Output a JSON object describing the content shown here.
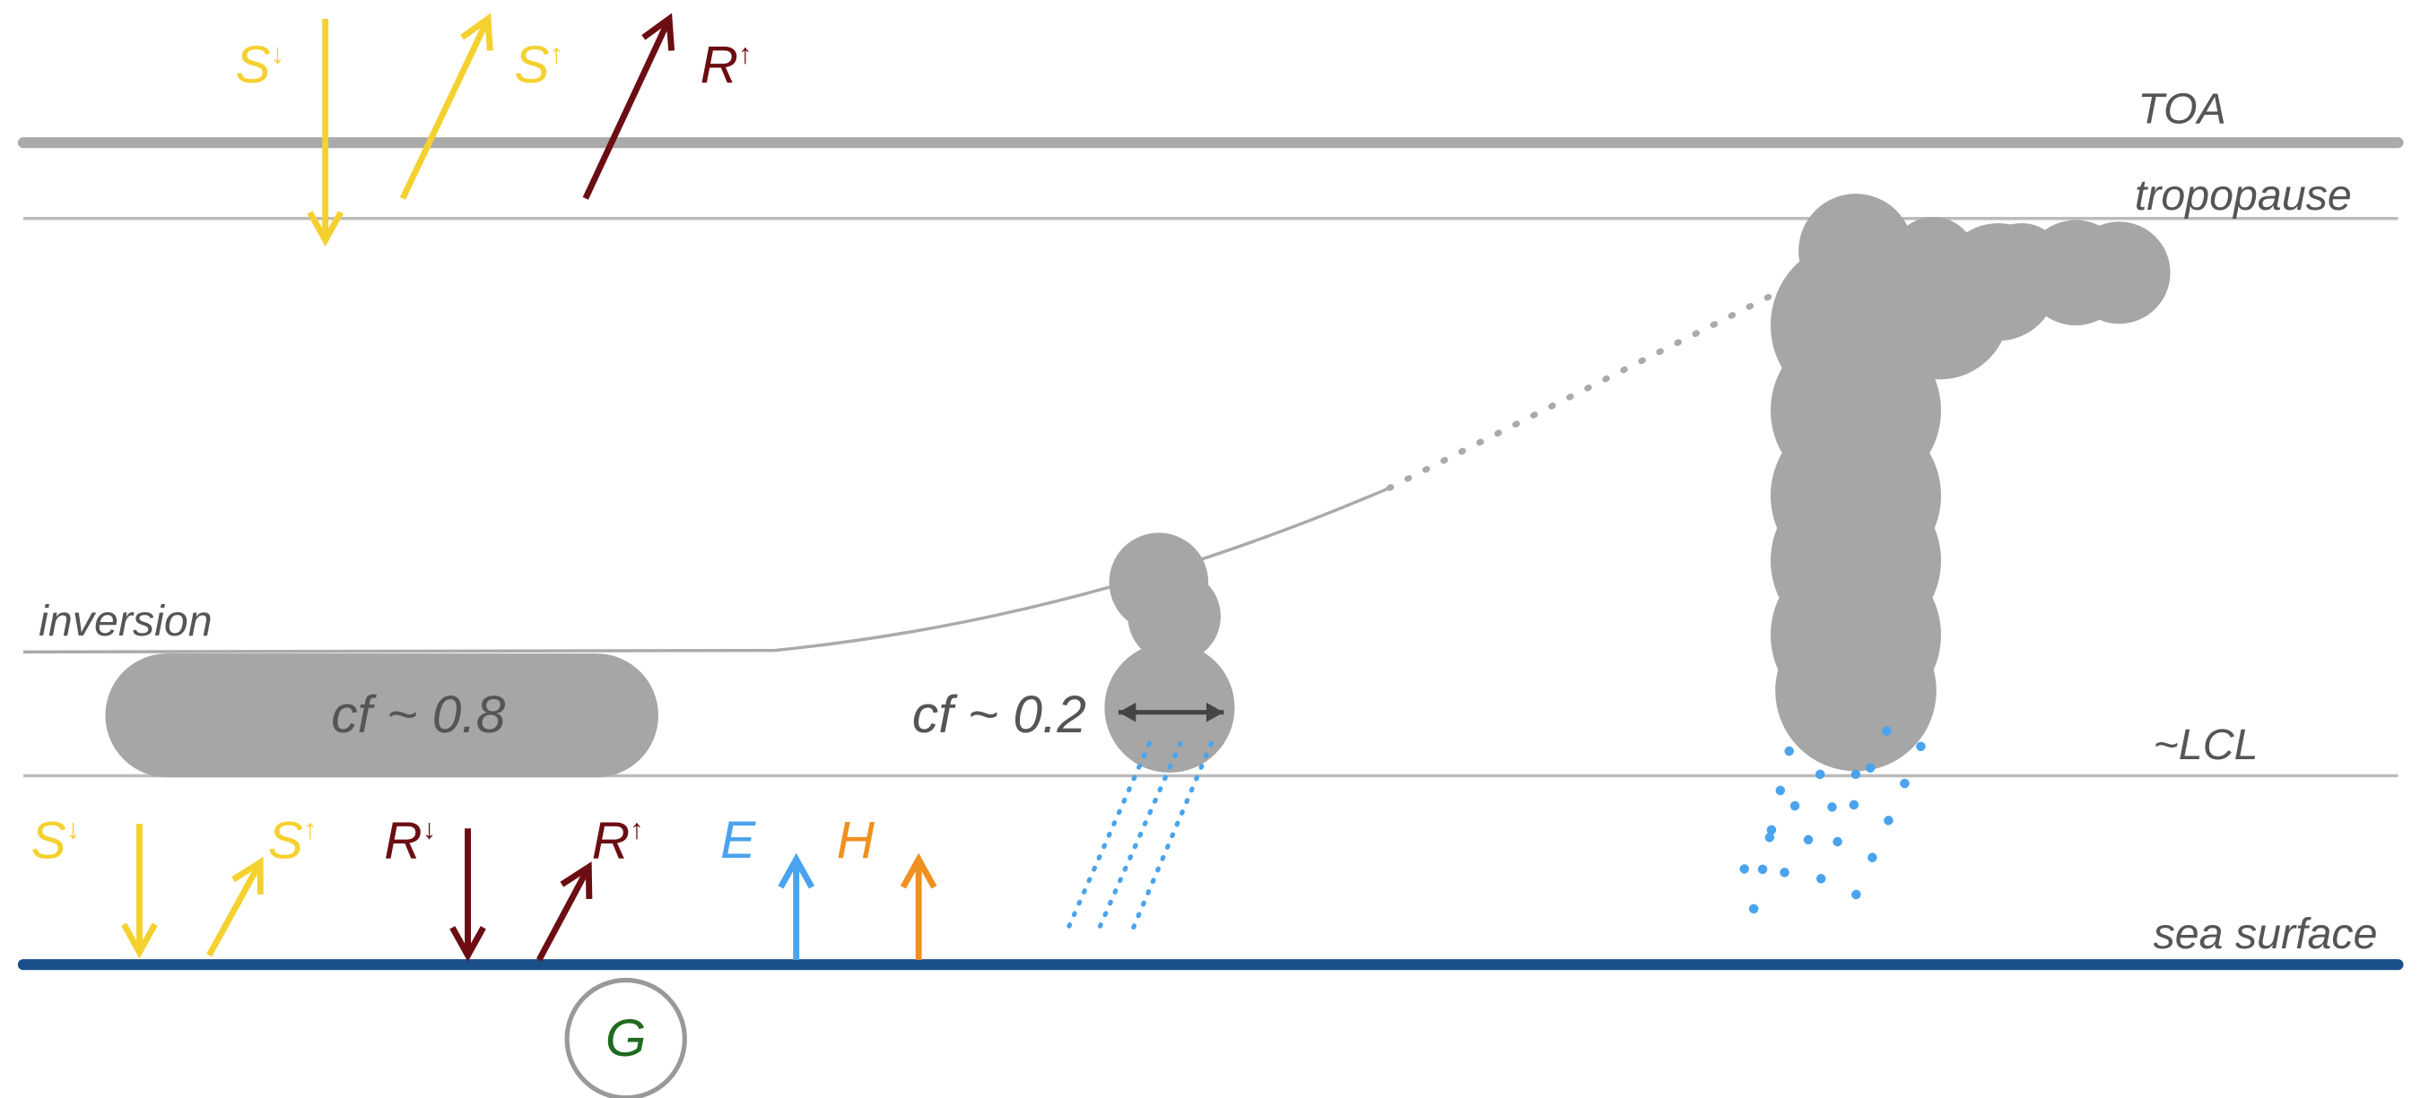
{
  "labels": {
    "toa": "TOA",
    "tropopause": "tropopause",
    "inversion": "inversion",
    "lcl": "~LCL",
    "sea_surface": "sea surface"
  },
  "clouds": {
    "stratocumulus": "cf ~ 0.8",
    "cumulus": "cf ~ 0.2"
  },
  "fluxes": {
    "toa": [
      {
        "symbol": "S",
        "arrow": "↓"
      },
      {
        "symbol": "S",
        "arrow": "↑"
      },
      {
        "symbol": "R",
        "arrow": "↑"
      }
    ],
    "surface": [
      {
        "symbol": "S",
        "arrow": "↓"
      },
      {
        "symbol": "S",
        "arrow": "↑"
      },
      {
        "symbol": "R",
        "arrow": "↓"
      },
      {
        "symbol": "R",
        "arrow": "↑"
      },
      {
        "symbol": "E"
      },
      {
        "symbol": "H"
      }
    ]
  },
  "ground_flux": "G"
}
